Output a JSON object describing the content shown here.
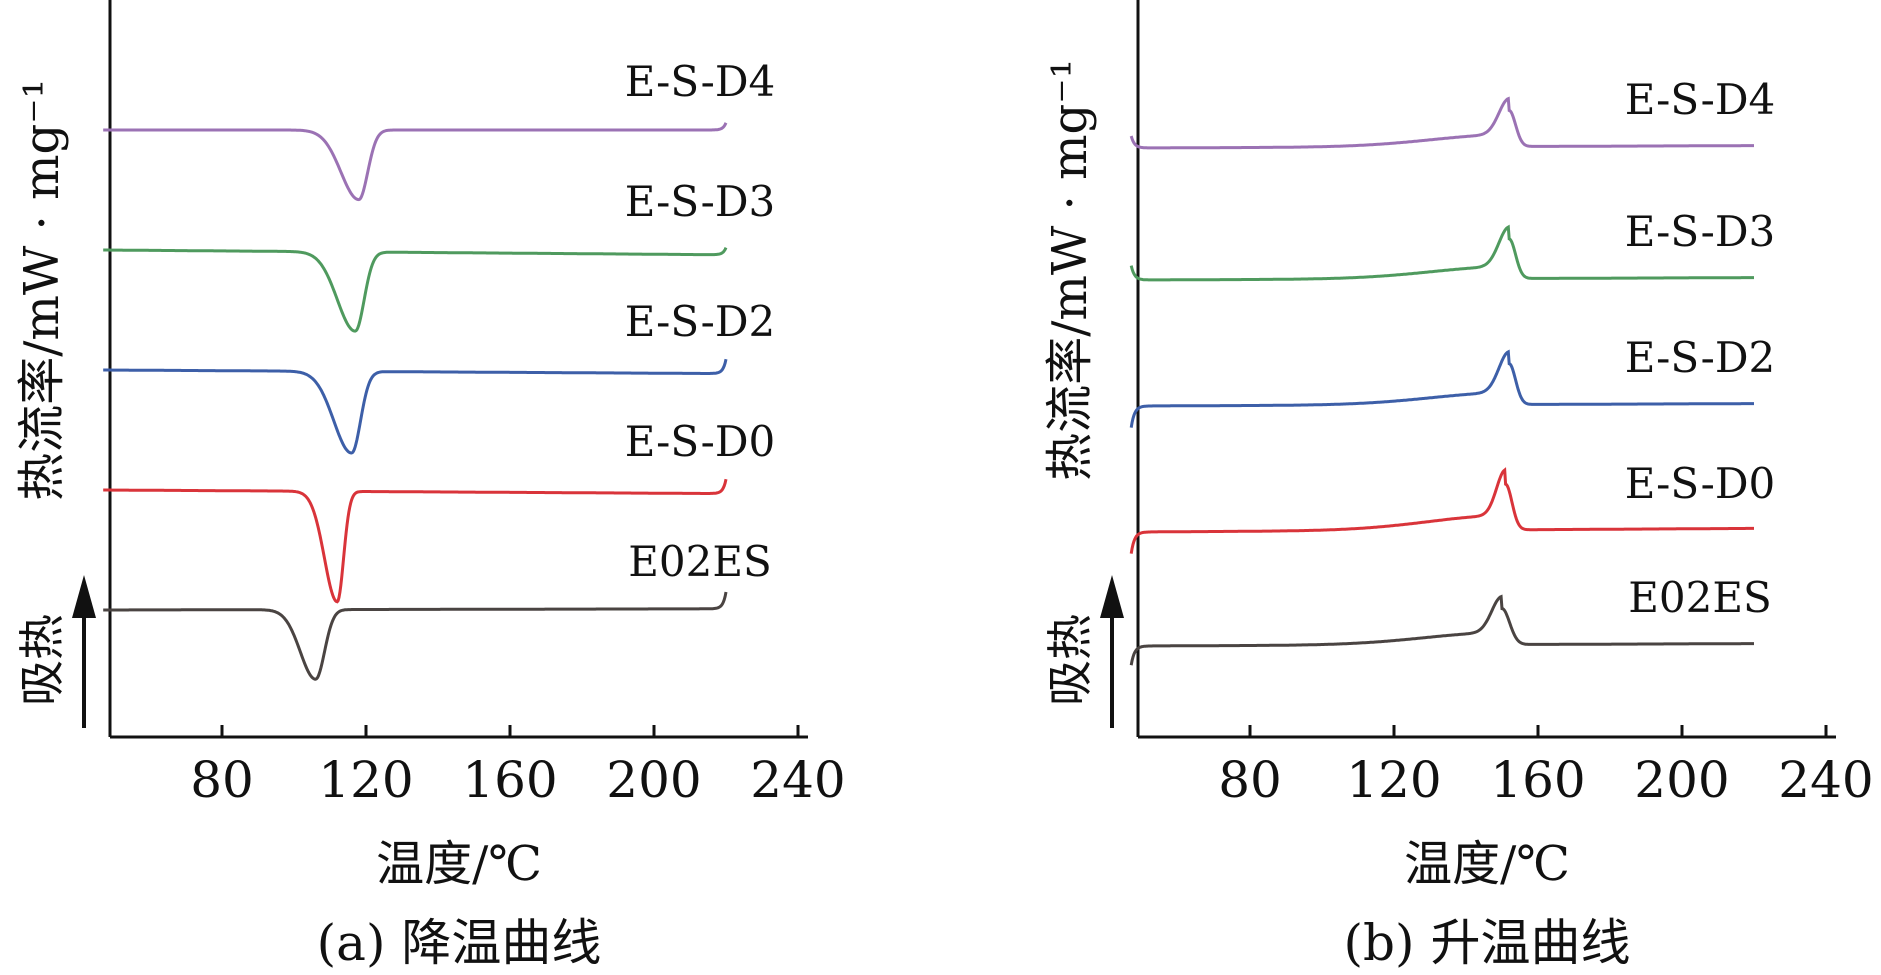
{
  "chart_data": [
    {
      "type": "line",
      "caption": "(a) 降温曲线",
      "xlabel": "温度/℃",
      "ylabel": "热流率/mW · mg⁻¹",
      "endo_label": "吸热",
      "xlim": [
        45,
        245
      ],
      "xticks": [
        "80",
        "120",
        "160",
        "200",
        "240"
      ],
      "yticks_shown": false,
      "series": [
        {
          "name": "E-S-D4",
          "color": "#9b72b4",
          "baseline": 4.0,
          "drift": 0.0,
          "peaks": [
            {
              "x": 118,
              "depth": -0.58,
              "left_width": 7,
              "right_width": 3.5
            }
          ],
          "end_kick": 0.06,
          "start_x": 47,
          "end_x": 220
        },
        {
          "name": "E-S-D3",
          "color": "#4f9a5e",
          "baseline": 3.0,
          "drift": -0.04,
          "peaks": [
            {
              "x": 117,
              "depth": -0.66,
              "left_width": 7,
              "right_width": 3.5
            }
          ],
          "end_kick": 0.06,
          "start_x": 47,
          "end_x": 220
        },
        {
          "name": "E-S-D2",
          "color": "#3d5fa8",
          "baseline": 2.0,
          "drift": -0.03,
          "peaks": [
            {
              "x": 116,
              "depth": -0.68,
              "left_width": 7,
              "right_width": 3.5
            }
          ],
          "end_kick": 0.12,
          "start_x": 47,
          "end_x": 220
        },
        {
          "name": "E-S-D0",
          "color": "#d9343a",
          "baseline": 1.0,
          "drift": -0.03,
          "peaks": [
            {
              "x": 112,
              "depth": -0.92,
              "left_width": 5,
              "right_width": 2.5
            }
          ],
          "end_kick": 0.12,
          "start_x": 47,
          "end_x": 220
        },
        {
          "name": "E02ES",
          "color": "#4a4442",
          "baseline": 0.0,
          "drift": 0.01,
          "peaks": [
            {
              "x": 106,
              "depth": -0.58,
              "left_width": 6,
              "right_width": 3.5
            }
          ],
          "end_kick": 0.14,
          "start_x": 47,
          "end_x": 220
        }
      ],
      "ylim": [
        -0.75,
        4.75
      ]
    },
    {
      "type": "line",
      "caption": "(b) 升温曲线",
      "xlabel": "温度/℃",
      "ylabel": "热流率/mW · mg⁻¹",
      "endo_label": "吸热",
      "xlim": [
        45,
        245
      ],
      "xticks": [
        "80",
        "120",
        "160",
        "200",
        "240"
      ],
      "yticks_shown": false,
      "series": [
        {
          "name": "E-S-D4",
          "color": "#9b72b4",
          "baseline": 4.0,
          "drift": 0.02,
          "peaks": [
            {
              "x": 152,
              "depth": 0.3,
              "left_width": 4,
              "right_width": 2.5
            }
          ],
          "broad_rise": 0.1,
          "start_kick": 0.1,
          "start_x": 47,
          "end_x": 220
        },
        {
          "name": "E-S-D3",
          "color": "#4f9a5e",
          "baseline": 2.9,
          "drift": 0.02,
          "peaks": [
            {
              "x": 152,
              "depth": 0.33,
              "left_width": 4,
              "right_width": 2.5
            }
          ],
          "broad_rise": 0.1,
          "start_kick": 0.12,
          "start_x": 47,
          "end_x": 220
        },
        {
          "name": "E-S-D2",
          "color": "#3d5fa8",
          "baseline": 1.85,
          "drift": 0.02,
          "peaks": [
            {
              "x": 152,
              "depth": 0.34,
              "left_width": 4,
              "right_width": 2.5
            }
          ],
          "broad_rise": 0.1,
          "start_kick": -0.18,
          "start_x": 47,
          "end_x": 220
        },
        {
          "name": "E-S-D0",
          "color": "#d9343a",
          "baseline": 0.8,
          "drift": 0.03,
          "peaks": [
            {
              "x": 151,
              "depth": 0.38,
              "left_width": 3.5,
              "right_width": 2.5
            }
          ],
          "broad_rise": 0.12,
          "start_kick": -0.18,
          "start_x": 47,
          "end_x": 220
        },
        {
          "name": "E02ES",
          "color": "#4a4442",
          "baseline": -0.15,
          "drift": 0.02,
          "peaks": [
            {
              "x": 150,
              "depth": 0.3,
              "left_width": 4,
              "right_width": 3
            }
          ],
          "broad_rise": 0.1,
          "start_kick": -0.16,
          "start_x": 47,
          "end_x": 220
        }
      ],
      "ylim": [
        -0.6,
        4.9
      ]
    }
  ]
}
